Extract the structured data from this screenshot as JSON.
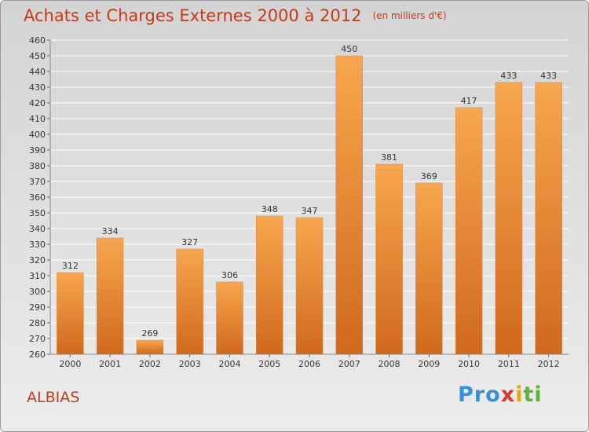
{
  "header": {
    "title": "Achats et Charges Externes 2000 à 2012",
    "unit": "(en milliers d'€)"
  },
  "footer": {
    "town": "ALBIAS",
    "logo": [
      "Pro",
      "x",
      "i",
      "ti"
    ]
  },
  "colors": {
    "bar_light": "#f8a650",
    "bar_dark": "#d0691c",
    "title": "#c53b1a"
  },
  "chart_data": {
    "type": "bar",
    "categories": [
      "2000",
      "2001",
      "2002",
      "2003",
      "2004",
      "2005",
      "2006",
      "2007",
      "2008",
      "2009",
      "2010",
      "2011",
      "2012"
    ],
    "values": [
      312,
      334,
      269,
      327,
      306,
      348,
      347,
      450,
      381,
      369,
      417,
      433,
      433
    ],
    "ylim": [
      260,
      460
    ],
    "yticks": [
      260,
      270,
      280,
      290,
      300,
      310,
      320,
      330,
      340,
      350,
      360,
      370,
      380,
      390,
      400,
      410,
      420,
      430,
      440,
      450,
      460
    ],
    "grid": true
  }
}
